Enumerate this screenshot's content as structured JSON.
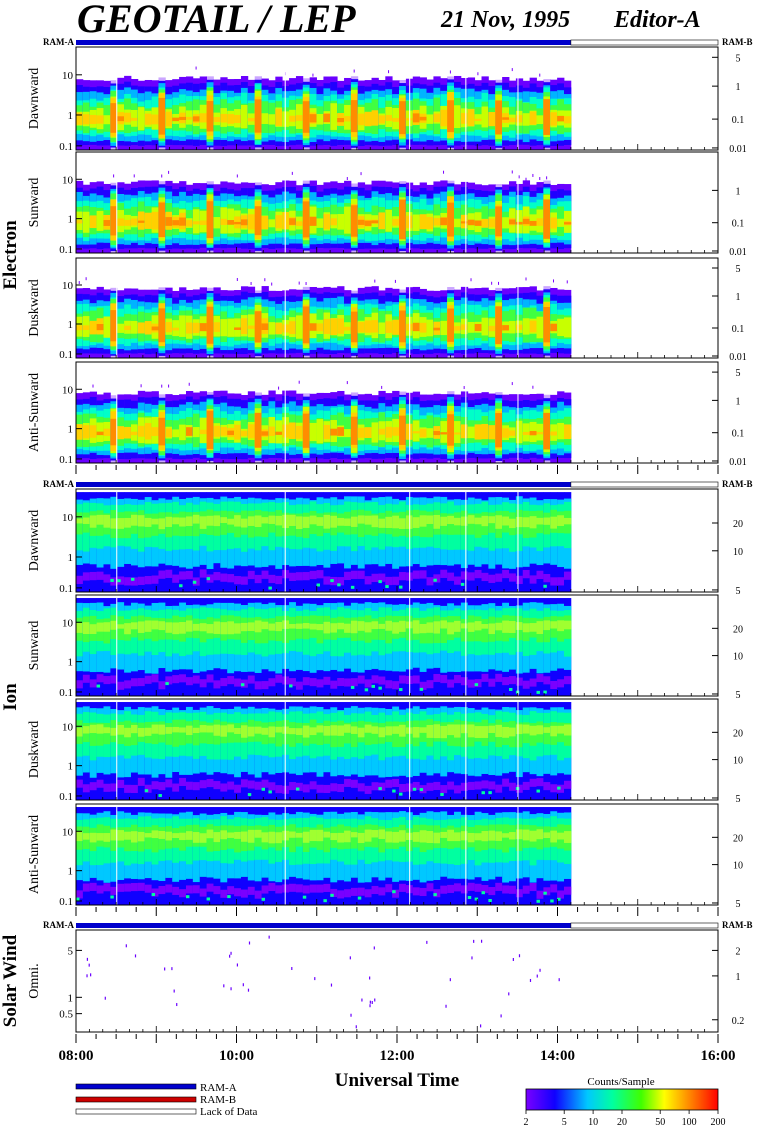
{
  "header": {
    "title": "GEOTAIL / LEP",
    "date": "21 Nov, 1995",
    "editor": "Editor-A"
  },
  "ram": {
    "a_label": "RAM-A",
    "b_label": "RAM-B"
  },
  "chart_data": {
    "type": "heatmap",
    "x": {
      "label": "Universal Time",
      "range": [
        "08:00",
        "16:00"
      ],
      "major_ticks": [
        "08:00",
        "10:00",
        "12:00",
        "14:00",
        "16:00"
      ],
      "data_end": "14:10"
    },
    "groups": [
      {
        "name": "Electron",
        "panels": [
          {
            "name": "Dawnward",
            "left_ticks": [
              "10",
              "1",
              "0.1"
            ],
            "right_ticks": [
              "5",
              "1",
              "0.1",
              "0.01"
            ]
          },
          {
            "name": "Sunward",
            "left_ticks": [
              "10",
              "1",
              "0.1"
            ],
            "right_ticks": [
              "1",
              "0.1",
              "0.01"
            ]
          },
          {
            "name": "Duskward",
            "left_ticks": [
              "10",
              "1",
              "0.1"
            ],
            "right_ticks": [
              "5",
              "1",
              "0.1",
              "0.01"
            ]
          },
          {
            "name": "Anti-Sunward",
            "left_ticks": [
              "10",
              "1",
              "0.1"
            ],
            "right_ticks": [
              "5",
              "1",
              "0.1",
              "0.01"
            ]
          }
        ]
      },
      {
        "name": "Ion",
        "panels": [
          {
            "name": "Dawnward",
            "left_ticks": [
              "10",
              "1",
              "0.1"
            ],
            "right_ticks": [
              "20",
              "10",
              "5"
            ]
          },
          {
            "name": "Sunward",
            "left_ticks": [
              "10",
              "1",
              "0.1"
            ],
            "right_ticks": [
              "20",
              "10",
              "5"
            ]
          },
          {
            "name": "Duskward",
            "left_ticks": [
              "10",
              "1",
              "0.1"
            ],
            "right_ticks": [
              "20",
              "10",
              "5"
            ]
          },
          {
            "name": "Anti-Sunward",
            "left_ticks": [
              "10",
              "1",
              "0.1"
            ],
            "right_ticks": [
              "20",
              "10",
              "5"
            ]
          }
        ]
      },
      {
        "name": "Solar Wind",
        "panels": [
          {
            "name": "Omni.",
            "left_ticks": [
              "5",
              "1",
              "0.5"
            ],
            "right_ticks": [
              "2",
              "1",
              "0.2"
            ]
          }
        ]
      }
    ],
    "legend": [
      {
        "label": "RAM-A",
        "color": "#0000cc"
      },
      {
        "label": "RAM-B",
        "color": "#cc0000"
      },
      {
        "label": "Lack of Data",
        "color": "#ffffff"
      }
    ],
    "colorbar": {
      "label": "Counts/Sample",
      "ticks": [
        "2",
        "5",
        "10",
        "20",
        "50",
        "100",
        "200"
      ]
    }
  }
}
